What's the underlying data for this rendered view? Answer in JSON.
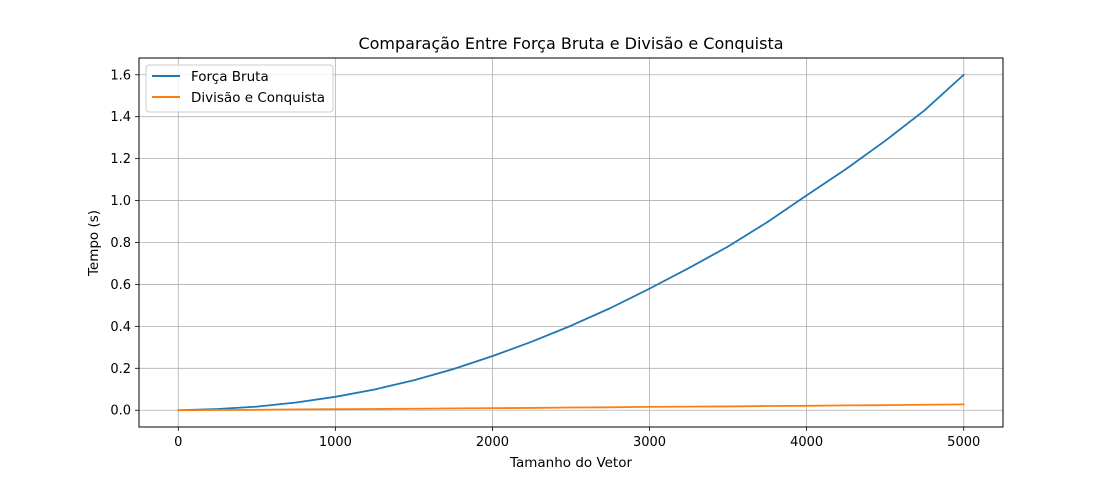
{
  "chart_data": {
    "type": "line",
    "title": "Comparação Entre Força Bruta e Divisão e Conquista",
    "xlabel": "Tamanho do Vetor",
    "ylabel": "Tempo (s)",
    "xlim": [
      -250,
      5250
    ],
    "ylim": [
      -0.08,
      1.68
    ],
    "xticks": [
      0,
      1000,
      2000,
      3000,
      4000,
      5000
    ],
    "xtick_labels": [
      "0",
      "1000",
      "2000",
      "3000",
      "4000",
      "5000"
    ],
    "yticks": [
      0.0,
      0.2,
      0.4,
      0.6,
      0.8,
      1.0,
      1.2,
      1.4,
      1.6
    ],
    "ytick_labels": [
      "0.0",
      "0.2",
      "0.4",
      "0.6",
      "0.8",
      "1.0",
      "1.2",
      "1.4",
      "1.6"
    ],
    "grid": true,
    "legend_position": "top-left",
    "series": [
      {
        "name": "Força Bruta",
        "color": "#1f77b4",
        "x": [
          0,
          250,
          500,
          750,
          1000,
          1250,
          1500,
          1750,
          2000,
          2250,
          2500,
          2750,
          3000,
          3250,
          3500,
          3750,
          4000,
          4250,
          4500,
          4750,
          5000
        ],
        "y": [
          0.0,
          0.006,
          0.017,
          0.037,
          0.064,
          0.099,
          0.143,
          0.196,
          0.258,
          0.327,
          0.403,
          0.487,
          0.58,
          0.678,
          0.781,
          0.897,
          1.025,
          1.15,
          1.285,
          1.43,
          1.6
        ]
      },
      {
        "name": "Divisão e Conquista",
        "color": "#ff7f0e",
        "x": [
          0,
          250,
          500,
          750,
          1000,
          1250,
          1500,
          1750,
          2000,
          2250,
          2500,
          2750,
          3000,
          3250,
          3500,
          3750,
          4000,
          4250,
          4500,
          4750,
          5000
        ],
        "y": [
          0.0,
          0.001,
          0.002,
          0.004,
          0.005,
          0.006,
          0.007,
          0.009,
          0.01,
          0.011,
          0.013,
          0.014,
          0.016,
          0.017,
          0.018,
          0.02,
          0.021,
          0.023,
          0.024,
          0.026,
          0.028
        ]
      }
    ]
  }
}
